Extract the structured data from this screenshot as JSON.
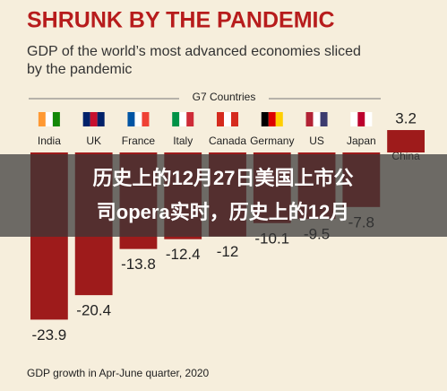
{
  "chart_data": {
    "type": "bar",
    "title": "SHRUNK BY THE PANDEMIC",
    "subtitle": [
      "GDP of the world’s most advanced economies sliced",
      "by the pandemic"
    ],
    "group_label": "G7 Countries",
    "categories": [
      "India",
      "UK",
      "France",
      "Italy",
      "Canada",
      "Germany",
      "US",
      "Japan",
      "China"
    ],
    "values": [
      -23.9,
      -20.4,
      -13.8,
      -12.4,
      -12,
      -10.1,
      -9.5,
      -7.8,
      3.2
    ],
    "color": "#9e1b1b",
    "ylim": [
      -25,
      5
    ],
    "footnote": "GDP growth in Apr-June quarter, 2020"
  },
  "banner": {
    "lines": [
      "历史上的12月27日美国上市公",
      "司opera实时，历史上的12月"
    ]
  }
}
